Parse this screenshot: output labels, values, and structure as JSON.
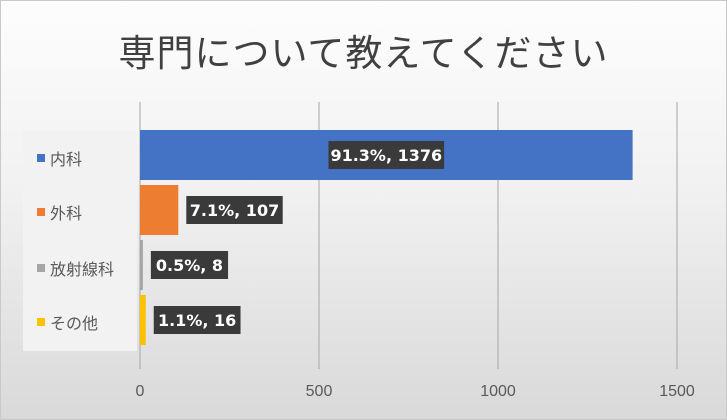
{
  "chart_data": {
    "type": "bar",
    "orientation": "horizontal",
    "title": "専門について教えてください",
    "categories": [
      "内科",
      "外科",
      "放射線科",
      "その他"
    ],
    "values": [
      1376,
      107,
      8,
      16
    ],
    "data_labels": [
      "91.3%, 1376",
      "7.1%, 107",
      "0.5%, 8",
      "1.1%, 16"
    ],
    "colors": [
      "#4472C4",
      "#ED7D31",
      "#A5A5A5",
      "#FFC000"
    ],
    "xlim": [
      0,
      1500
    ],
    "x_ticks": [
      0,
      500,
      1000,
      1500
    ],
    "x_tick_labels": [
      "0",
      "500",
      "1000",
      "1500"
    ],
    "grid": true,
    "legend_position": "left"
  }
}
